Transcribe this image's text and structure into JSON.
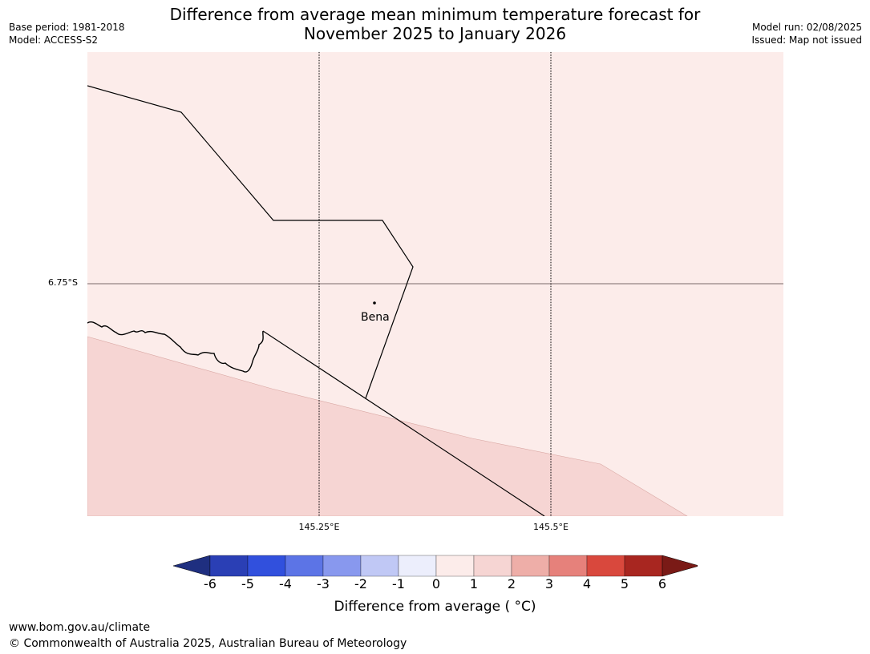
{
  "title_line1": "Difference from average mean minimum temperature forecast for",
  "title_line2": "November 2025 to January 2026",
  "meta_left": {
    "base_period": "Base period: 1981-2018",
    "model": "Model: ACCESS-S2"
  },
  "meta_right": {
    "model_run": "Model run: 02/08/2025",
    "issued": "Issued: Map not issued"
  },
  "axes": {
    "lat_labels": [
      "6.75°S"
    ],
    "lon_labels": [
      "145.25°E",
      "145.5°E"
    ]
  },
  "places": [
    {
      "name": "Bena"
    }
  ],
  "legend": {
    "ticks": [
      "-6",
      "-5",
      "-4",
      "-3",
      "-2",
      "-1",
      "0",
      "1",
      "2",
      "3",
      "4",
      "5",
      "6"
    ],
    "colors": [
      "#1f2f80",
      "#2a3fb5",
      "#3150dd",
      "#5c74e6",
      "#8898ee",
      "#c0c8f5",
      "#eceefc",
      "#fcecea",
      "#f6d5d3",
      "#eeaea8",
      "#e6817b",
      "#d9483d",
      "#a82620",
      "#7a1a16"
    ],
    "label": "Difference from average ( °C)"
  },
  "map_colors": {
    "zone_1_to_2": "#fcecea",
    "zone_2_to_3": "#f6d5d3"
  },
  "footer": {
    "url": "www.bom.gov.au/climate",
    "copyright": "© Commonwealth of Australia 2025, Australian Bureau of Meteorology"
  }
}
